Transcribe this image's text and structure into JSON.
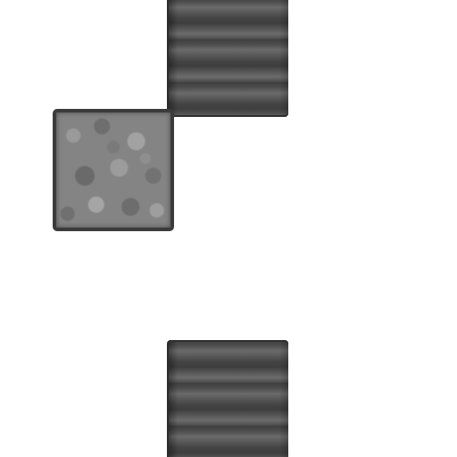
{
  "board": {
    "background": "#ffffff",
    "tiles": [
      {
        "kind": "metal-block",
        "color": "#555555"
      },
      {
        "kind": "stone-block",
        "color": "#848484"
      },
      {
        "kind": "metal-block",
        "color": "#555555"
      }
    ]
  }
}
